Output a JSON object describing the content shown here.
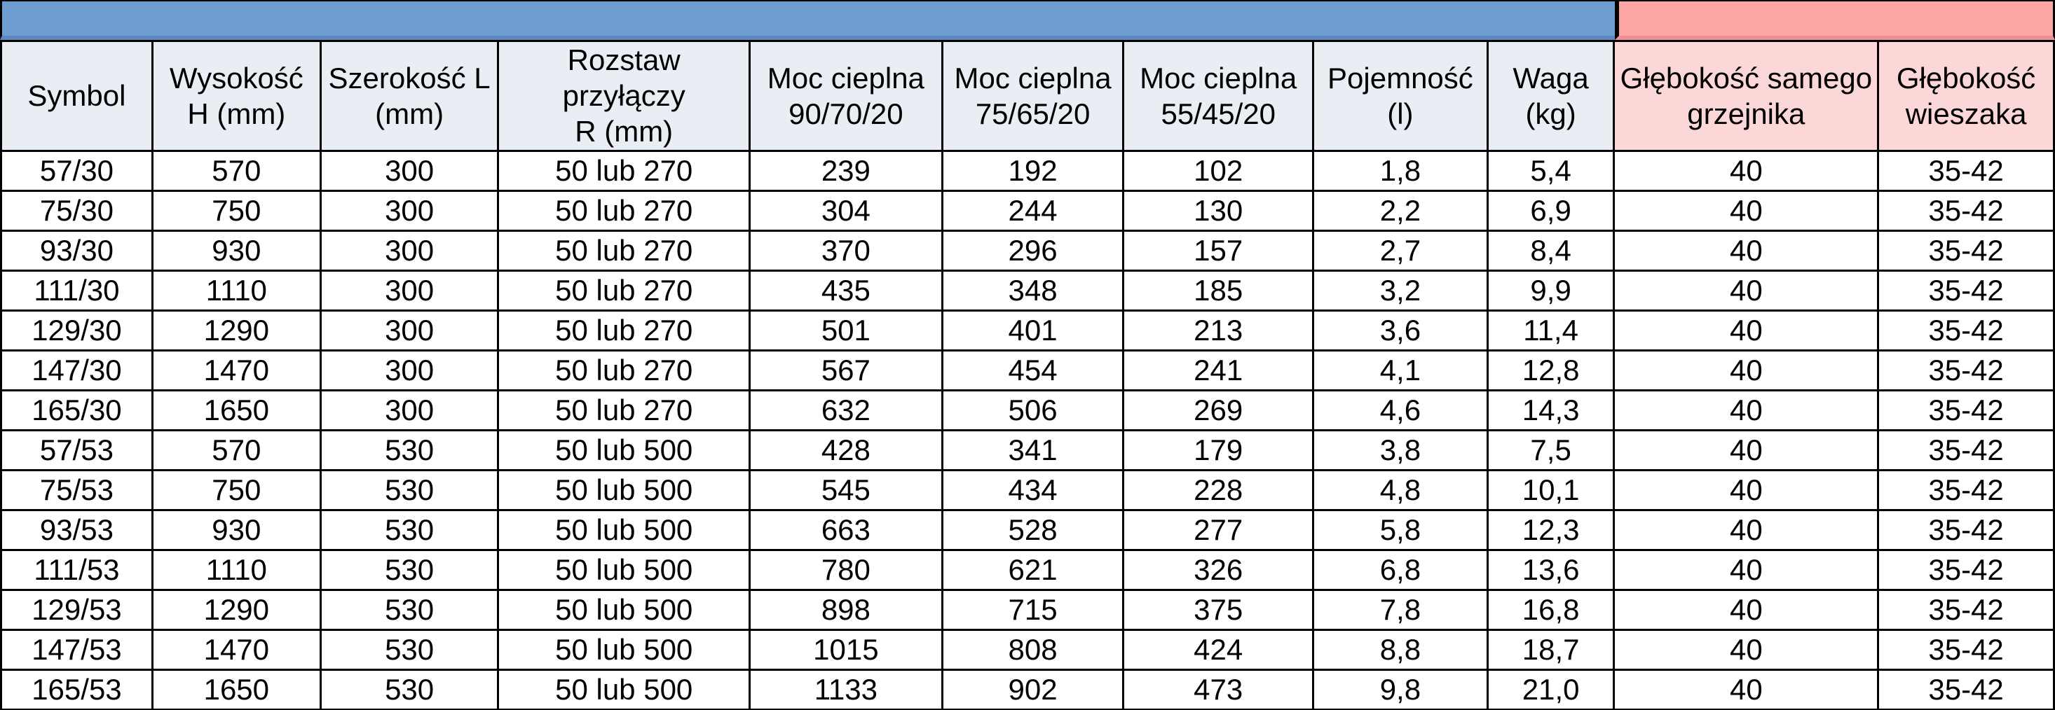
{
  "colors": {
    "banner_blue": "#6F9DD2",
    "banner_blue_dark": "#5E89BC",
    "banner_pink": "#FCA5A5",
    "banner_pink_dark": "#EF9092",
    "header_blue_bg": "#E9EDF4",
    "header_pink_bg": "#FBD7D7",
    "border": "#000000"
  },
  "table": {
    "columns": [
      {
        "id": "symbol",
        "label": "Symbol",
        "group": "blue"
      },
      {
        "id": "height",
        "label": "Wysokość\nH (mm)",
        "group": "blue"
      },
      {
        "id": "width",
        "label": "Szerokość L\n(mm)",
        "group": "blue"
      },
      {
        "id": "connection_spacing",
        "label": "Rozstaw przyłączy\nR (mm)",
        "group": "blue"
      },
      {
        "id": "power_90_70_20",
        "label": "Moc cieplna\n90/70/20",
        "group": "blue"
      },
      {
        "id": "power_75_65_20",
        "label": "Moc cieplna\n75/65/20",
        "group": "blue"
      },
      {
        "id": "power_55_45_20",
        "label": "Moc cieplna\n55/45/20",
        "group": "blue"
      },
      {
        "id": "capacity",
        "label": "Pojemność\n(l)",
        "group": "blue"
      },
      {
        "id": "weight",
        "label": "Waga\n(kg)",
        "group": "blue"
      },
      {
        "id": "depth_radiator",
        "label": "Głębokość samego\ngrzejnika",
        "group": "pink"
      },
      {
        "id": "depth_hanger",
        "label": "Głębokość\nwieszaka",
        "group": "pink"
      }
    ],
    "rows": [
      [
        "57/30",
        "570",
        "300",
        "50 lub 270",
        "239",
        "192",
        "102",
        "1,8",
        "5,4",
        "40",
        "35-42"
      ],
      [
        "75/30",
        "750",
        "300",
        "50 lub 270",
        "304",
        "244",
        "130",
        "2,2",
        "6,9",
        "40",
        "35-42"
      ],
      [
        "93/30",
        "930",
        "300",
        "50 lub 270",
        "370",
        "296",
        "157",
        "2,7",
        "8,4",
        "40",
        "35-42"
      ],
      [
        "111/30",
        "1110",
        "300",
        "50 lub 270",
        "435",
        "348",
        "185",
        "3,2",
        "9,9",
        "40",
        "35-42"
      ],
      [
        "129/30",
        "1290",
        "300",
        "50 lub 270",
        "501",
        "401",
        "213",
        "3,6",
        "11,4",
        "40",
        "35-42"
      ],
      [
        "147/30",
        "1470",
        "300",
        "50 lub 270",
        "567",
        "454",
        "241",
        "4,1",
        "12,8",
        "40",
        "35-42"
      ],
      [
        "165/30",
        "1650",
        "300",
        "50 lub 270",
        "632",
        "506",
        "269",
        "4,6",
        "14,3",
        "40",
        "35-42"
      ],
      [
        "57/53",
        "570",
        "530",
        "50 lub 500",
        "428",
        "341",
        "179",
        "3,8",
        "7,5",
        "40",
        "35-42"
      ],
      [
        "75/53",
        "750",
        "530",
        "50 lub 500",
        "545",
        "434",
        "228",
        "4,8",
        "10,1",
        "40",
        "35-42"
      ],
      [
        "93/53",
        "930",
        "530",
        "50 lub 500",
        "663",
        "528",
        "277",
        "5,8",
        "12,3",
        "40",
        "35-42"
      ],
      [
        "111/53",
        "1110",
        "530",
        "50 lub 500",
        "780",
        "621",
        "326",
        "6,8",
        "13,6",
        "40",
        "35-42"
      ],
      [
        "129/53",
        "1290",
        "530",
        "50 lub 500",
        "898",
        "715",
        "375",
        "7,8",
        "16,8",
        "40",
        "35-42"
      ],
      [
        "147/53",
        "1470",
        "530",
        "50 lub 500",
        "1015",
        "808",
        "424",
        "8,8",
        "18,7",
        "40",
        "35-42"
      ],
      [
        "165/53",
        "1650",
        "530",
        "50 lub 500",
        "1133",
        "902",
        "473",
        "9,8",
        "21,0",
        "40",
        "35-42"
      ]
    ]
  }
}
